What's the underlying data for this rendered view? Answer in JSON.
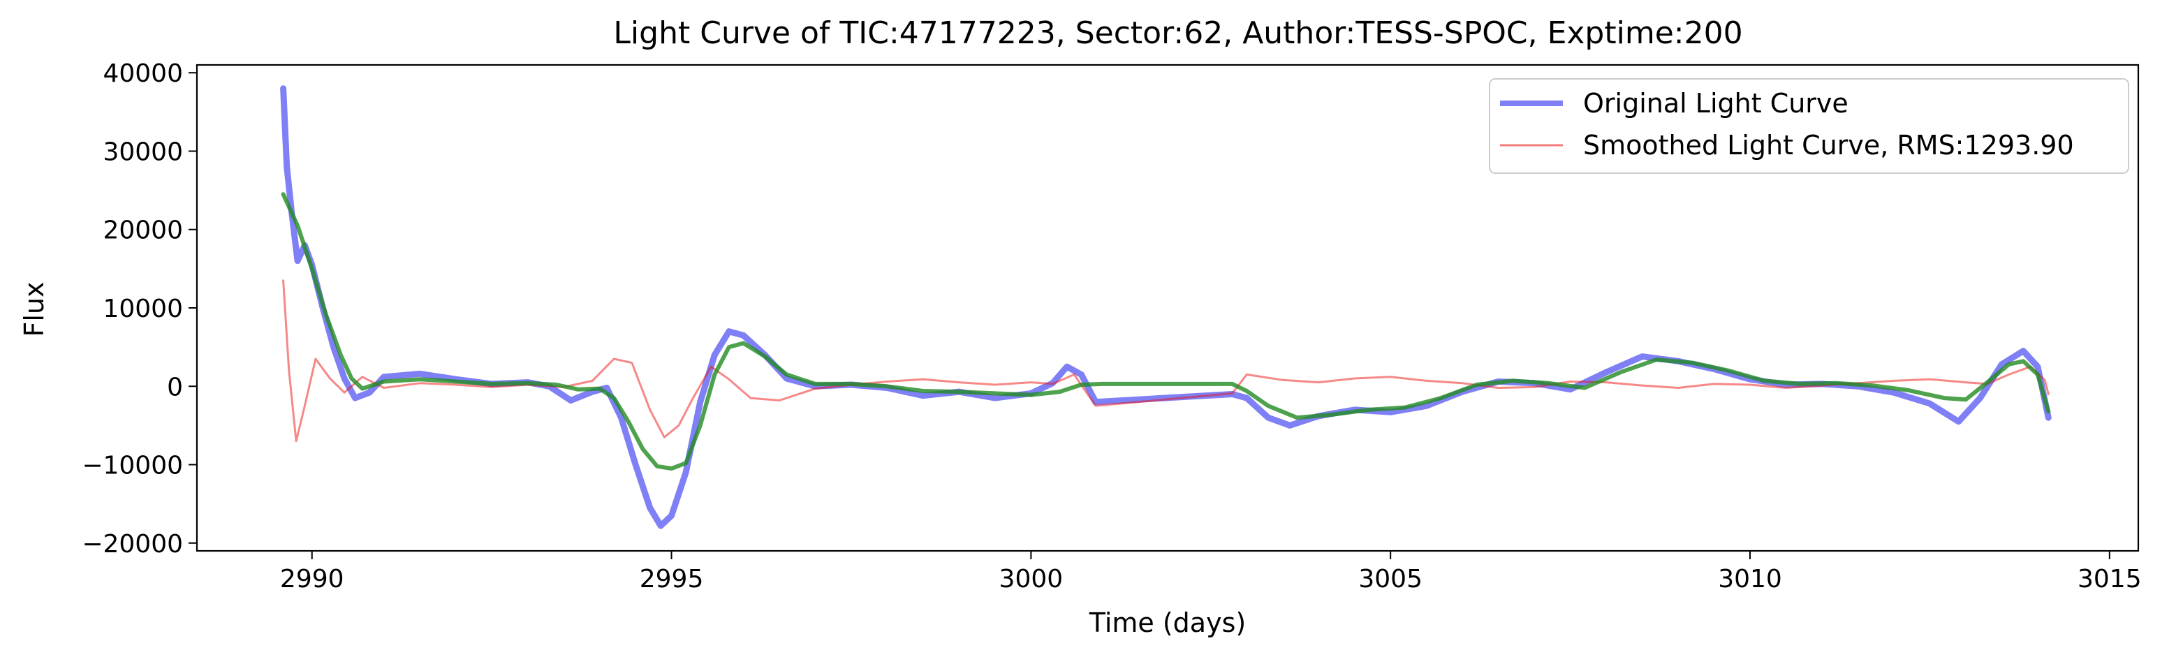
{
  "chart_data": {
    "type": "line",
    "title": "Light Curve of TIC:47177223, Sector:62, Author:TESS-SPOC, Exptime:200",
    "xlabel": "Time (days)",
    "ylabel": "Flux",
    "xlim": [
      2988.4,
      3015.4
    ],
    "ylim": [
      -21000,
      41000
    ],
    "xticks": [
      2990,
      2995,
      3000,
      3005,
      3010,
      3015
    ],
    "yticks": [
      -20000,
      -10000,
      0,
      10000,
      20000,
      30000,
      40000
    ],
    "grid": false,
    "legend_position": "top-right",
    "series": [
      {
        "name": "Original Light Curve",
        "color": "#0000ee",
        "opacity": 0.5,
        "points": [
          [
            2989.6,
            38000
          ],
          [
            2989.65,
            28000
          ],
          [
            2989.72,
            22000
          ],
          [
            2989.8,
            16000
          ],
          [
            2989.9,
            18000
          ],
          [
            2990.0,
            15500
          ],
          [
            2990.15,
            10000
          ],
          [
            2990.3,
            5000
          ],
          [
            2990.45,
            1000
          ],
          [
            2990.6,
            -1500
          ],
          [
            2990.8,
            -800
          ],
          [
            2991.0,
            1200
          ],
          [
            2991.5,
            1600
          ],
          [
            2992.0,
            900
          ],
          [
            2992.5,
            300
          ],
          [
            2993.0,
            500
          ],
          [
            2993.3,
            0
          ],
          [
            2993.6,
            -1800
          ],
          [
            2993.9,
            -700
          ],
          [
            2994.1,
            -200
          ],
          [
            2994.3,
            -4000
          ],
          [
            2994.5,
            -10000
          ],
          [
            2994.7,
            -15500
          ],
          [
            2994.85,
            -17800
          ],
          [
            2995.0,
            -16500
          ],
          [
            2995.2,
            -11000
          ],
          [
            2995.4,
            -2000
          ],
          [
            2995.6,
            4000
          ],
          [
            2995.8,
            7000
          ],
          [
            2996.0,
            6500
          ],
          [
            2996.3,
            4000
          ],
          [
            2996.6,
            1000
          ],
          [
            2997.0,
            0
          ],
          [
            2997.5,
            200
          ],
          [
            2998.0,
            -200
          ],
          [
            2998.5,
            -1200
          ],
          [
            2999.0,
            -700
          ],
          [
            2999.5,
            -1500
          ],
          [
            3000.0,
            -900
          ],
          [
            3000.3,
            400
          ],
          [
            3000.5,
            2500
          ],
          [
            3000.7,
            1500
          ],
          [
            3000.9,
            -2000
          ],
          [
            3002.8,
            -1000
          ],
          [
            3003.0,
            -1500
          ],
          [
            3003.3,
            -4000
          ],
          [
            3003.6,
            -5000
          ],
          [
            3004.0,
            -3800
          ],
          [
            3004.5,
            -3000
          ],
          [
            3005.0,
            -3300
          ],
          [
            3005.5,
            -2500
          ],
          [
            3006.0,
            -700
          ],
          [
            3006.5,
            600
          ],
          [
            3007.0,
            400
          ],
          [
            3007.5,
            -400
          ],
          [
            3008.0,
            1800
          ],
          [
            3008.5,
            3800
          ],
          [
            3009.0,
            3200
          ],
          [
            3009.5,
            2200
          ],
          [
            3010.0,
            900
          ],
          [
            3010.5,
            200
          ],
          [
            3011.0,
            300
          ],
          [
            3011.5,
            0
          ],
          [
            3012.0,
            -800
          ],
          [
            3012.5,
            -2200
          ],
          [
            3012.9,
            -4500
          ],
          [
            3013.2,
            -1500
          ],
          [
            3013.5,
            2800
          ],
          [
            3013.8,
            4500
          ],
          [
            3014.0,
            2500
          ],
          [
            3014.15,
            -4000
          ]
        ]
      },
      {
        "name": "Smoothed Light Curve, RMS:1293.90",
        "color": "#ee1111",
        "opacity": 0.5,
        "points": [
          [
            2989.6,
            13500
          ],
          [
            2989.68,
            2000
          ],
          [
            2989.78,
            -7000
          ],
          [
            2989.9,
            -2500
          ],
          [
            2990.05,
            3500
          ],
          [
            2990.25,
            1000
          ],
          [
            2990.45,
            -800
          ],
          [
            2990.7,
            1200
          ],
          [
            2991.0,
            -200
          ],
          [
            2991.5,
            400
          ],
          [
            2992.0,
            200
          ],
          [
            2992.5,
            -100
          ],
          [
            2993.0,
            200
          ],
          [
            2993.5,
            -100
          ],
          [
            2993.9,
            700
          ],
          [
            2994.2,
            3500
          ],
          [
            2994.45,
            3000
          ],
          [
            2994.7,
            -3000
          ],
          [
            2994.9,
            -6500
          ],
          [
            2995.1,
            -5000
          ],
          [
            2995.3,
            -1500
          ],
          [
            2995.55,
            2500
          ],
          [
            2995.8,
            900
          ],
          [
            2996.1,
            -1500
          ],
          [
            2996.5,
            -1800
          ],
          [
            2997.0,
            -300
          ],
          [
            2997.5,
            200
          ],
          [
            2998.0,
            600
          ],
          [
            2998.5,
            900
          ],
          [
            2999.0,
            500
          ],
          [
            2999.5,
            200
          ],
          [
            3000.0,
            500
          ],
          [
            3000.3,
            300
          ],
          [
            3000.6,
            1500
          ],
          [
            3000.9,
            -2500
          ],
          [
            3002.8,
            -900
          ],
          [
            3003.0,
            1500
          ],
          [
            3003.5,
            800
          ],
          [
            3004.0,
            500
          ],
          [
            3004.5,
            1000
          ],
          [
            3005.0,
            1200
          ],
          [
            3005.5,
            700
          ],
          [
            3006.0,
            400
          ],
          [
            3006.5,
            -200
          ],
          [
            3007.0,
            -100
          ],
          [
            3007.5,
            600
          ],
          [
            3008.0,
            500
          ],
          [
            3008.5,
            100
          ],
          [
            3009.0,
            -200
          ],
          [
            3009.5,
            300
          ],
          [
            3010.0,
            200
          ],
          [
            3010.5,
            -200
          ],
          [
            3011.0,
            100
          ],
          [
            3011.5,
            400
          ],
          [
            3012.0,
            700
          ],
          [
            3012.5,
            900
          ],
          [
            3013.0,
            500
          ],
          [
            3013.3,
            300
          ],
          [
            3013.6,
            1500
          ],
          [
            3013.9,
            2500
          ],
          [
            3014.1,
            800
          ],
          [
            3014.15,
            -1000
          ]
        ]
      },
      {
        "name": "",
        "color": "#228b22",
        "opacity": 0.8,
        "points": [
          [
            2989.6,
            24500
          ],
          [
            2989.8,
            20500
          ],
          [
            2990.0,
            15000
          ],
          [
            2990.2,
            9000
          ],
          [
            2990.4,
            4000
          ],
          [
            2990.55,
            1000
          ],
          [
            2990.7,
            -300
          ],
          [
            2991.0,
            600
          ],
          [
            2991.5,
            900
          ],
          [
            2992.0,
            600
          ],
          [
            2992.5,
            300
          ],
          [
            2993.0,
            400
          ],
          [
            2993.4,
            200
          ],
          [
            2993.7,
            -400
          ],
          [
            2994.0,
            -300
          ],
          [
            2994.2,
            -1500
          ],
          [
            2994.4,
            -4500
          ],
          [
            2994.6,
            -8000
          ],
          [
            2994.8,
            -10200
          ],
          [
            2995.0,
            -10500
          ],
          [
            2995.2,
            -9800
          ],
          [
            2995.4,
            -5000
          ],
          [
            2995.6,
            1500
          ],
          [
            2995.8,
            5000
          ],
          [
            2996.0,
            5500
          ],
          [
            2996.3,
            3800
          ],
          [
            2996.6,
            1500
          ],
          [
            2997.0,
            300
          ],
          [
            2997.5,
            300
          ],
          [
            2998.0,
            0
          ],
          [
            2998.5,
            -600
          ],
          [
            2999.0,
            -700
          ],
          [
            2999.5,
            -900
          ],
          [
            3000.0,
            -1100
          ],
          [
            3000.4,
            -700
          ],
          [
            3000.7,
            200
          ],
          [
            3001.0,
            300
          ],
          [
            3002.8,
            300
          ],
          [
            3003.0,
            -600
          ],
          [
            3003.3,
            -2500
          ],
          [
            3003.7,
            -4000
          ],
          [
            3004.2,
            -3600
          ],
          [
            3004.7,
            -3000
          ],
          [
            3005.2,
            -2700
          ],
          [
            3005.7,
            -1500
          ],
          [
            3006.2,
            200
          ],
          [
            3006.7,
            700
          ],
          [
            3007.2,
            400
          ],
          [
            3007.7,
            -200
          ],
          [
            3008.2,
            1800
          ],
          [
            3008.7,
            3400
          ],
          [
            3009.2,
            3000
          ],
          [
            3009.7,
            2000
          ],
          [
            3010.2,
            700
          ],
          [
            3010.7,
            300
          ],
          [
            3011.2,
            400
          ],
          [
            3011.7,
            100
          ],
          [
            3012.2,
            -500
          ],
          [
            3012.7,
            -1500
          ],
          [
            3013.0,
            -1700
          ],
          [
            3013.3,
            500
          ],
          [
            3013.6,
            2800
          ],
          [
            3013.8,
            3200
          ],
          [
            3014.0,
            1500
          ],
          [
            3014.15,
            -3200
          ]
        ]
      }
    ]
  }
}
